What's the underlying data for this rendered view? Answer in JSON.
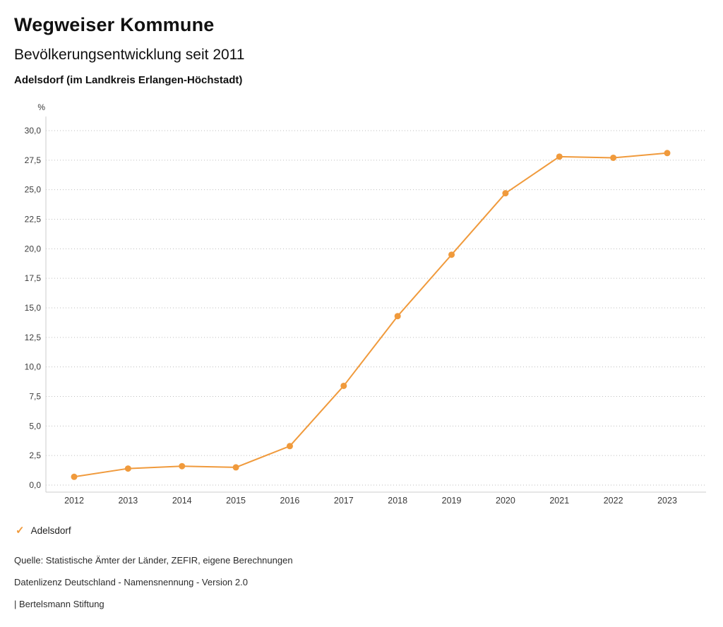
{
  "header": {
    "title": "Wegweiser Kommune",
    "subtitle": "Bevölkerungsentwicklung seit 2011",
    "region": "Adelsdorf (im Landkreis Erlangen-Höchstadt)"
  },
  "chart_data": {
    "type": "line",
    "title": "Bevölkerungsentwicklung seit 2011",
    "unit_label": "%",
    "categories": [
      "2012",
      "2013",
      "2014",
      "2015",
      "2016",
      "2017",
      "2018",
      "2019",
      "2020",
      "2021",
      "2022",
      "2023"
    ],
    "series": [
      {
        "name": "Adelsdorf",
        "values": [
          0.7,
          1.4,
          1.6,
          1.5,
          3.3,
          8.4,
          14.3,
          19.5,
          24.7,
          27.8,
          27.7,
          28.1
        ]
      }
    ],
    "ylim": [
      0,
      30
    ],
    "ytick_step": 2.5,
    "ytick_labels": [
      "0,0",
      "2,5",
      "5,0",
      "7,5",
      "10,0",
      "12,5",
      "15,0",
      "17,5",
      "20,0",
      "22,5",
      "25,0",
      "27,5",
      "30,0"
    ],
    "grid": "dotted-horizontal",
    "legend_position": "bottom-left",
    "line_color": "#f09a3c",
    "marker": "circle"
  },
  "legend": {
    "items": [
      {
        "label": "Adelsdorf",
        "color": "#f09a3c",
        "symbol": "check"
      }
    ],
    "check_glyph": "✓"
  },
  "footer": {
    "source": "Quelle: Statistische Ämter der Länder, ZEFIR, eigene Berechnungen",
    "license": "Datenlizenz Deutschland - Namensnennung - Version 2.0",
    "publisher": "| Bertelsmann Stiftung"
  },
  "colors": {
    "accent_orange": "#f09a3c",
    "grid_gray": "#bdbdbd",
    "axis_gray": "#cccccc",
    "text_dark": "#111111"
  }
}
